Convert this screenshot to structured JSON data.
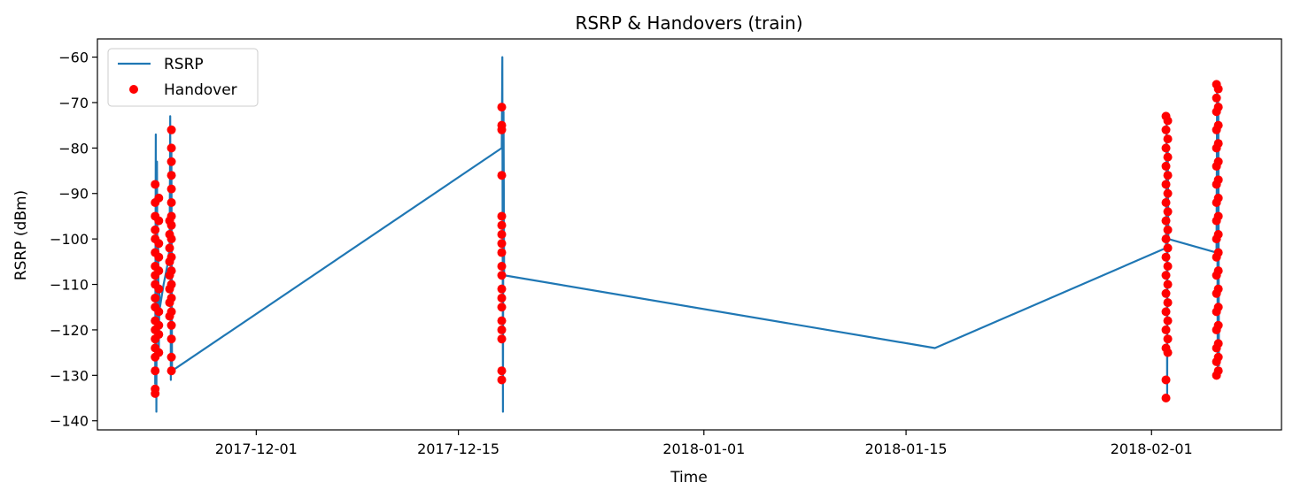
{
  "chart_data": {
    "type": "line",
    "title": "RSRP & Handovers (train)",
    "xlabel": "Time",
    "ylabel": "RSRP (dBm)",
    "x_type": "date",
    "xlim": [
      "2017-11-20",
      "2018-02-10"
    ],
    "ylim": [
      -142,
      -56
    ],
    "xticks": [
      "2017-12-01",
      "2017-12-15",
      "2018-01-01",
      "2018-01-15",
      "2018-02-01"
    ],
    "yticks": [
      -60,
      -70,
      -80,
      -90,
      -100,
      -110,
      -120,
      -130,
      -140
    ],
    "grid": false,
    "legend": {
      "position": "top-left",
      "entries": [
        "RSRP",
        "Handover"
      ]
    },
    "colors": {
      "RSRP": "#1f77b4",
      "Handover": "#ff0000"
    },
    "series": [
      {
        "name": "RSRP",
        "kind": "line",
        "points": [
          [
            "2017-11-24T00:00",
            -132
          ],
          [
            "2017-11-24T01:00",
            -77
          ],
          [
            "2017-11-24T02:00",
            -138
          ],
          [
            "2017-11-24T03:00",
            -83
          ],
          [
            "2017-11-24T04:00",
            -118
          ],
          [
            "2017-11-24T05:00",
            -100
          ],
          [
            "2017-11-24T06:00",
            -125
          ],
          [
            "2017-11-24T07:00",
            -112
          ],
          [
            "2017-11-24T08:00",
            -115
          ],
          [
            "2017-11-24T14:00",
            -110
          ],
          [
            "2017-11-24T20:00",
            -106
          ],
          [
            "2017-11-25T00:00",
            -102
          ],
          [
            "2017-11-25T01:00",
            -73
          ],
          [
            "2017-11-25T02:00",
            -131
          ],
          [
            "2017-11-25T03:00",
            -80
          ],
          [
            "2017-11-25T04:00",
            -129
          ],
          [
            "2017-12-18T00:00",
            -80
          ],
          [
            "2017-12-18T01:00",
            -60
          ],
          [
            "2017-12-18T02:00",
            -138
          ],
          [
            "2017-12-18T03:00",
            -72
          ],
          [
            "2017-12-18T04:00",
            -108
          ],
          [
            "2018-01-17T00:00",
            -124
          ],
          [
            "2018-02-02T00:00",
            -102
          ],
          [
            "2018-02-02T01:00",
            -74
          ],
          [
            "2018-02-02T02:00",
            -135
          ],
          [
            "2018-02-02T03:00",
            -80
          ],
          [
            "2018-02-02T04:00",
            -100
          ],
          [
            "2018-02-05T12:00",
            -103
          ],
          [
            "2018-02-05T13:00",
            -66
          ],
          [
            "2018-02-05T14:00",
            -130
          ],
          [
            "2018-02-05T15:00",
            -70
          ],
          [
            "2018-02-05T16:00",
            -128
          ]
        ]
      },
      {
        "name": "Handover",
        "kind": "scatter",
        "points": [
          [
            "2017-11-24T00:00",
            -88
          ],
          [
            "2017-11-24T00:00",
            -92
          ],
          [
            "2017-11-24T00:00",
            -95
          ],
          [
            "2017-11-24T00:00",
            -98
          ],
          [
            "2017-11-24T00:00",
            -100
          ],
          [
            "2017-11-24T00:00",
            -103
          ],
          [
            "2017-11-24T00:00",
            -106
          ],
          [
            "2017-11-24T00:00",
            -108
          ],
          [
            "2017-11-24T00:00",
            -110
          ],
          [
            "2017-11-24T00:00",
            -113
          ],
          [
            "2017-11-24T00:00",
            -115
          ],
          [
            "2017-11-24T00:00",
            -118
          ],
          [
            "2017-11-24T00:00",
            -120
          ],
          [
            "2017-11-24T00:00",
            -122
          ],
          [
            "2017-11-24T00:00",
            -124
          ],
          [
            "2017-11-24T00:00",
            -126
          ],
          [
            "2017-11-24T00:00",
            -129
          ],
          [
            "2017-11-24T00:00",
            -133
          ],
          [
            "2017-11-24T00:00",
            -134
          ],
          [
            "2017-11-24T06:00",
            -91
          ],
          [
            "2017-11-24T06:00",
            -96
          ],
          [
            "2017-11-24T06:00",
            -101
          ],
          [
            "2017-11-24T06:00",
            -104
          ],
          [
            "2017-11-24T06:00",
            -107
          ],
          [
            "2017-11-24T06:00",
            -111
          ],
          [
            "2017-11-24T06:00",
            -116
          ],
          [
            "2017-11-24T06:00",
            -119
          ],
          [
            "2017-11-24T06:00",
            -121
          ],
          [
            "2017-11-24T06:00",
            -125
          ],
          [
            "2017-11-25T00:00",
            -96
          ],
          [
            "2017-11-25T00:00",
            -99
          ],
          [
            "2017-11-25T00:00",
            -102
          ],
          [
            "2017-11-25T00:00",
            -105
          ],
          [
            "2017-11-25T00:00",
            -108
          ],
          [
            "2017-11-25T00:00",
            -111
          ],
          [
            "2017-11-25T00:00",
            -114
          ],
          [
            "2017-11-25T00:00",
            -117
          ],
          [
            "2017-11-25T03:00",
            -76
          ],
          [
            "2017-11-25T03:00",
            -80
          ],
          [
            "2017-11-25T03:00",
            -83
          ],
          [
            "2017-11-25T03:00",
            -86
          ],
          [
            "2017-11-25T03:00",
            -89
          ],
          [
            "2017-11-25T03:00",
            -92
          ],
          [
            "2017-11-25T03:00",
            -95
          ],
          [
            "2017-11-25T03:00",
            -97
          ],
          [
            "2017-11-25T03:00",
            -100
          ],
          [
            "2017-11-25T03:00",
            -104
          ],
          [
            "2017-11-25T03:00",
            -107
          ],
          [
            "2017-11-25T03:00",
            -110
          ],
          [
            "2017-11-25T03:00",
            -113
          ],
          [
            "2017-11-25T03:00",
            -116
          ],
          [
            "2017-11-25T03:00",
            -119
          ],
          [
            "2017-11-25T03:00",
            -122
          ],
          [
            "2017-11-25T03:00",
            -126
          ],
          [
            "2017-11-25T03:00",
            -129
          ],
          [
            "2017-12-18T00:00",
            -71
          ],
          [
            "2017-12-18T00:00",
            -75
          ],
          [
            "2017-12-18T00:00",
            -76
          ],
          [
            "2017-12-18T00:00",
            -86
          ],
          [
            "2017-12-18T00:00",
            -95
          ],
          [
            "2017-12-18T00:00",
            -97
          ],
          [
            "2017-12-18T00:00",
            -99
          ],
          [
            "2017-12-18T00:00",
            -101
          ],
          [
            "2017-12-18T00:00",
            -103
          ],
          [
            "2017-12-18T00:00",
            -106
          ],
          [
            "2017-12-18T00:00",
            -108
          ],
          [
            "2017-12-18T00:00",
            -111
          ],
          [
            "2017-12-18T00:00",
            -113
          ],
          [
            "2017-12-18T00:00",
            -115
          ],
          [
            "2017-12-18T00:00",
            -118
          ],
          [
            "2017-12-18T00:00",
            -120
          ],
          [
            "2017-12-18T00:00",
            -122
          ],
          [
            "2017-12-18T00:00",
            -129
          ],
          [
            "2017-12-18T00:00",
            -131
          ],
          [
            "2018-02-02T00:00",
            -73
          ],
          [
            "2018-02-02T00:00",
            -76
          ],
          [
            "2018-02-02T00:00",
            -80
          ],
          [
            "2018-02-02T00:00",
            -84
          ],
          [
            "2018-02-02T00:00",
            -88
          ],
          [
            "2018-02-02T00:00",
            -92
          ],
          [
            "2018-02-02T00:00",
            -96
          ],
          [
            "2018-02-02T00:00",
            -100
          ],
          [
            "2018-02-02T00:00",
            -104
          ],
          [
            "2018-02-02T00:00",
            -108
          ],
          [
            "2018-02-02T00:00",
            -112
          ],
          [
            "2018-02-02T00:00",
            -116
          ],
          [
            "2018-02-02T00:00",
            -120
          ],
          [
            "2018-02-02T00:00",
            -124
          ],
          [
            "2018-02-02T00:00",
            -131
          ],
          [
            "2018-02-02T00:00",
            -135
          ],
          [
            "2018-02-02T03:00",
            -74
          ],
          [
            "2018-02-02T03:00",
            -78
          ],
          [
            "2018-02-02T03:00",
            -82
          ],
          [
            "2018-02-02T03:00",
            -86
          ],
          [
            "2018-02-02T03:00",
            -90
          ],
          [
            "2018-02-02T03:00",
            -94
          ],
          [
            "2018-02-02T03:00",
            -98
          ],
          [
            "2018-02-02T03:00",
            -102
          ],
          [
            "2018-02-02T03:00",
            -106
          ],
          [
            "2018-02-02T03:00",
            -110
          ],
          [
            "2018-02-02T03:00",
            -114
          ],
          [
            "2018-02-02T03:00",
            -118
          ],
          [
            "2018-02-02T03:00",
            -122
          ],
          [
            "2018-02-02T03:00",
            -125
          ],
          [
            "2018-02-05T12:00",
            -66
          ],
          [
            "2018-02-05T12:00",
            -69
          ],
          [
            "2018-02-05T12:00",
            -72
          ],
          [
            "2018-02-05T12:00",
            -76
          ],
          [
            "2018-02-05T12:00",
            -80
          ],
          [
            "2018-02-05T12:00",
            -84
          ],
          [
            "2018-02-05T12:00",
            -88
          ],
          [
            "2018-02-05T12:00",
            -92
          ],
          [
            "2018-02-05T12:00",
            -96
          ],
          [
            "2018-02-05T12:00",
            -100
          ],
          [
            "2018-02-05T12:00",
            -104
          ],
          [
            "2018-02-05T12:00",
            -108
          ],
          [
            "2018-02-05T12:00",
            -112
          ],
          [
            "2018-02-05T12:00",
            -116
          ],
          [
            "2018-02-05T12:00",
            -120
          ],
          [
            "2018-02-05T12:00",
            -124
          ],
          [
            "2018-02-05T12:00",
            -127
          ],
          [
            "2018-02-05T12:00",
            -130
          ],
          [
            "2018-02-05T15:00",
            -67
          ],
          [
            "2018-02-05T15:00",
            -71
          ],
          [
            "2018-02-05T15:00",
            -75
          ],
          [
            "2018-02-05T15:00",
            -79
          ],
          [
            "2018-02-05T15:00",
            -83
          ],
          [
            "2018-02-05T15:00",
            -87
          ],
          [
            "2018-02-05T15:00",
            -91
          ],
          [
            "2018-02-05T15:00",
            -95
          ],
          [
            "2018-02-05T15:00",
            -99
          ],
          [
            "2018-02-05T15:00",
            -103
          ],
          [
            "2018-02-05T15:00",
            -107
          ],
          [
            "2018-02-05T15:00",
            -111
          ],
          [
            "2018-02-05T15:00",
            -115
          ],
          [
            "2018-02-05T15:00",
            -119
          ],
          [
            "2018-02-05T15:00",
            -123
          ],
          [
            "2018-02-05T15:00",
            -126
          ],
          [
            "2018-02-05T15:00",
            -129
          ]
        ]
      }
    ]
  }
}
